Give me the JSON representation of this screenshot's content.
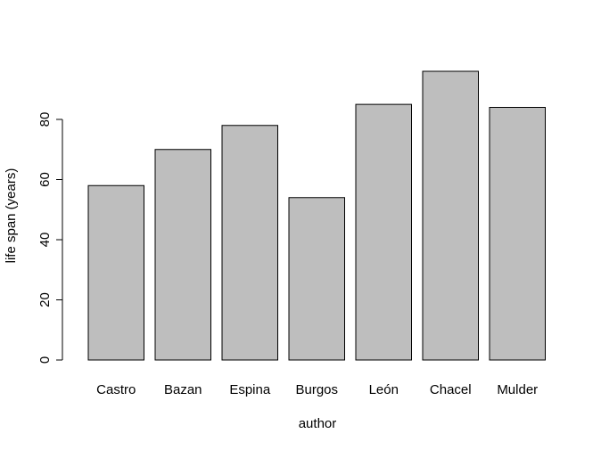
{
  "chart_data": {
    "type": "bar",
    "title": "",
    "xlabel": "author",
    "ylabel": "life span (years)",
    "categories": [
      "Castro",
      "Bazan",
      "Espina",
      "Burgos",
      "León",
      "Chacel",
      "Mulder"
    ],
    "values": [
      58,
      70,
      78,
      54,
      85,
      96,
      84
    ],
    "ylim": [
      0,
      100
    ],
    "yticks": [
      0,
      20,
      40,
      60,
      80
    ],
    "grid": false,
    "bar_color": "#bebebe",
    "bar_border_color": "#000000"
  }
}
